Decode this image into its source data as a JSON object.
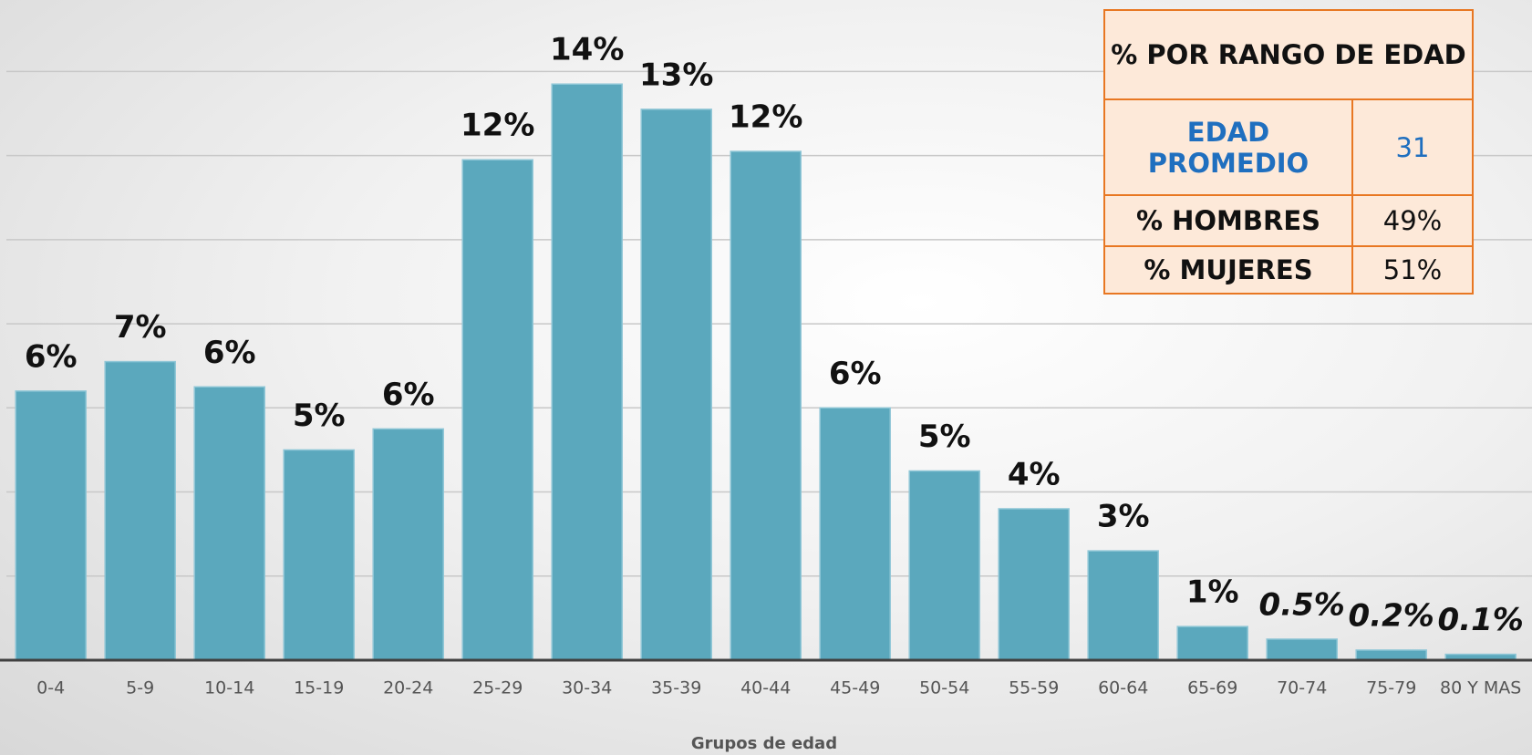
{
  "chart_data": {
    "type": "bar",
    "x_label": "Grupos de edad",
    "categories": [
      "0-4",
      "5-9",
      "10-14",
      "15-19",
      "20-24",
      "25-29",
      "30-34",
      "35-39",
      "40-44",
      "45-49",
      "50-54",
      "55-59",
      "60-64",
      "65-69",
      "70-74",
      "75-79",
      "80 Y MAS"
    ],
    "values": [
      6.4,
      7.1,
      6.5,
      5.0,
      5.5,
      11.9,
      13.7,
      13.1,
      12.1,
      6.0,
      4.5,
      3.6,
      2.6,
      0.8,
      0.5,
      0.24,
      0.14
    ],
    "value_labels": [
      "6%",
      "7%",
      "6%",
      "5%",
      "6%",
      "12%",
      "14%",
      "13%",
      "12%",
      "6%",
      "5%",
      "4%",
      "3%",
      "1%",
      "0.5%",
      "0.2%",
      "0.1%"
    ],
    "color": "#5ba8bd",
    "ylim": [
      0,
      15.7
    ],
    "yticks": [
      0,
      2,
      4,
      6,
      8,
      10,
      12,
      14
    ],
    "grid": true
  },
  "table": {
    "title": "% POR RANGO DE EDAD",
    "rows": [
      [
        "EDAD PROMEDIO",
        "31"
      ],
      [
        "% HOMBRES",
        "49%"
      ],
      [
        "% MUJERES",
        "51%"
      ]
    ]
  }
}
